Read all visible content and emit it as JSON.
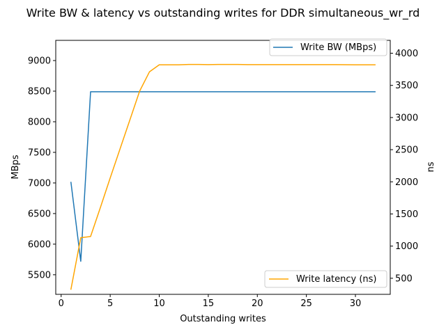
{
  "chart_data": {
    "type": "line",
    "title": "Write BW & latency vs outstanding writes for DDR simultaneous_wr_rd",
    "xlabel": "Outstanding writes",
    "ylabel_left": "MBps",
    "ylabel_right": "ns",
    "xlim": [
      -0.55,
      33.55
    ],
    "ylim_left": [
      5180,
      9330
    ],
    "ylim_right": [
      250,
      4200
    ],
    "x_ticks": [
      0,
      5,
      10,
      15,
      20,
      25,
      30
    ],
    "y_ticks_left": [
      5500,
      6000,
      6500,
      7000,
      7500,
      8000,
      8500,
      9000
    ],
    "y_ticks_right": [
      500,
      1000,
      1500,
      2000,
      2500,
      3000,
      3500,
      4000
    ],
    "grid": false,
    "series": [
      {
        "name": "Write BW (MBps)",
        "axis": "left",
        "color": "#1f77b4",
        "legend_position": "upper right",
        "x": [
          1,
          2,
          3,
          4,
          5,
          6,
          7,
          8,
          9,
          10,
          11,
          12,
          13,
          14,
          15,
          16,
          17,
          18,
          19,
          20,
          21,
          22,
          23,
          24,
          25,
          26,
          27,
          28,
          29,
          30,
          31,
          32
        ],
        "values": [
          7010,
          5720,
          8490,
          8490,
          8490,
          8490,
          8490,
          8490,
          8490,
          8490,
          8490,
          8490,
          8490,
          8490,
          8490,
          8490,
          8490,
          8490,
          8490,
          8490,
          8490,
          8490,
          8490,
          8490,
          8490,
          8490,
          8490,
          8490,
          8490,
          8490,
          8490,
          8490
        ]
      },
      {
        "name": "Write latency (ns)",
        "axis": "right",
        "color": "#ffa500",
        "legend_position": "lower right",
        "x": [
          1,
          2,
          3,
          4,
          5,
          6,
          7,
          8,
          9,
          10,
          11,
          12,
          13,
          14,
          15,
          16,
          17,
          18,
          19,
          20,
          21,
          22,
          23,
          24,
          25,
          26,
          27,
          28,
          29,
          30,
          31,
          32
        ],
        "values": [
          330,
          1130,
          1150,
          1600,
          2060,
          2510,
          2960,
          3410,
          3710,
          3820,
          3820,
          3820,
          3825,
          3825,
          3823,
          3825,
          3825,
          3825,
          3823,
          3822,
          3822,
          3822,
          3823,
          3823,
          3823,
          3823,
          3823,
          3822,
          3821,
          3820,
          3820,
          3820
        ]
      }
    ]
  }
}
